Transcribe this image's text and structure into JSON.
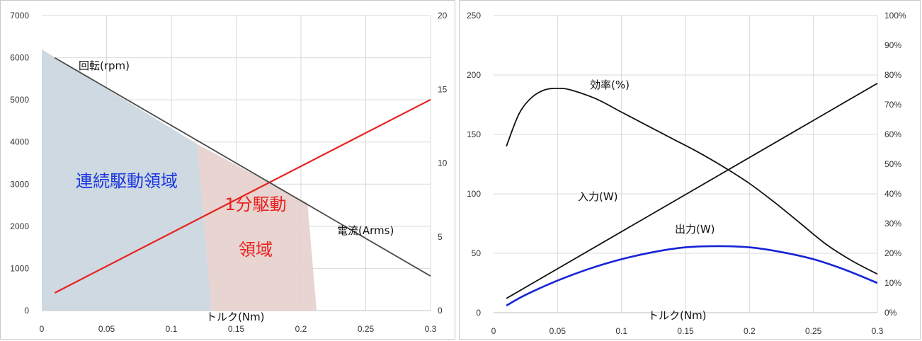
{
  "colors": {
    "rpm_line": "#4a4a4a",
    "current_line": "#e8231f",
    "continuous_region": "#c9d5de",
    "continuous_label": "#1a36e0",
    "peak_region": "#e6cfcc",
    "peak_label": "#e8231f",
    "efficiency_line": "#111111",
    "input_line": "#111111",
    "output_line": "#1624d6",
    "grid": "#d9d9d9"
  },
  "chart_data": [
    {
      "type": "line",
      "x_ticks": [
        0,
        0.05,
        0.1,
        0.15,
        0.2,
        0.25,
        0.3
      ],
      "x_tick_labels": [
        "0",
        "0.05",
        "0.1",
        "0.15",
        "0.2",
        "0.25",
        "0.3"
      ],
      "xlim": [
        0,
        0.3
      ],
      "ylim": [
        0,
        7000
      ],
      "y_ticks": [
        0,
        1000,
        2000,
        3000,
        4000,
        5000,
        6000,
        7000
      ],
      "y_tick_labels": [
        "0",
        "1000",
        "2000",
        "3000",
        "4000",
        "5000",
        "6000",
        "7000"
      ],
      "y2lim": [
        0,
        20
      ],
      "y2_ticks": [
        0,
        5,
        10,
        15,
        20
      ],
      "y2_tick_labels": [
        "0",
        "5",
        "10",
        "15",
        "20"
      ],
      "xlabel": "トルク(Nm)",
      "grid": true,
      "series": [
        {
          "name": "回転(rpm)",
          "axis": "left",
          "x": [
            0.01,
            0.3
          ],
          "y": [
            6000,
            820
          ]
        },
        {
          "name": "電流(Arms)",
          "axis": "right",
          "x": [
            0.01,
            0.3
          ],
          "y": [
            1.2,
            14.3
          ]
        }
      ],
      "regions": [
        {
          "name": "連続駆動領域",
          "label_lines": [
            "連続駆動領域"
          ],
          "polygon": [
            [
              0,
              6200
            ],
            [
              0.12,
              3950
            ],
            [
              0.131,
              0
            ],
            [
              0,
              0
            ]
          ]
        },
        {
          "name": "1分駆動領域",
          "label_lines": [
            "1分駆動",
            "領域"
          ],
          "polygon": [
            [
              0.12,
              3950
            ],
            [
              0.205,
              2550
            ],
            [
              0.212,
              0
            ],
            [
              0.131,
              0
            ]
          ]
        }
      ]
    },
    {
      "type": "line",
      "x_ticks": [
        0,
        0.05,
        0.1,
        0.15,
        0.2,
        0.25,
        0.3
      ],
      "x_tick_labels": [
        "0",
        "0.05",
        "0.1",
        "0.15",
        "0.2",
        "0.25",
        "0.3"
      ],
      "xlim": [
        0,
        0.3
      ],
      "ylim": [
        0,
        250
      ],
      "y_ticks": [
        0,
        50,
        100,
        150,
        200,
        250
      ],
      "y_tick_labels": [
        "0",
        "50",
        "100",
        "150",
        "200",
        "250"
      ],
      "y2lim": [
        0,
        100
      ],
      "y2_ticks": [
        0,
        10,
        20,
        30,
        40,
        50,
        60,
        70,
        80,
        90,
        100
      ],
      "y2_tick_labels": [
        "0%",
        "10%",
        "20%",
        "30%",
        "40%",
        "50%",
        "60%",
        "70%",
        "80%",
        "90%",
        "100%"
      ],
      "xlabel": "トルク(Nm)",
      "grid": true,
      "series": [
        {
          "name": "効率(%)",
          "axis": "right",
          "x": [
            0.01,
            0.02,
            0.03,
            0.04,
            0.05,
            0.06,
            0.08,
            0.1,
            0.12,
            0.14,
            0.16,
            0.18,
            0.2,
            0.22,
            0.24,
            0.26,
            0.28,
            0.3
          ],
          "y": [
            56,
            67,
            72.5,
            75,
            75.5,
            75,
            72,
            67.5,
            63,
            58.5,
            54,
            49,
            43.5,
            37,
            30,
            23,
            17.5,
            13
          ]
        },
        {
          "name": "入力(W)",
          "axis": "left",
          "x": [
            0.01,
            0.3
          ],
          "y": [
            12,
            193
          ]
        },
        {
          "name": "出力(W)",
          "axis": "left",
          "x": [
            0.01,
            0.025,
            0.05,
            0.075,
            0.1,
            0.125,
            0.15,
            0.175,
            0.2,
            0.225,
            0.25,
            0.275,
            0.3
          ],
          "y": [
            6,
            15,
            27,
            37,
            45,
            51,
            55,
            56,
            55,
            51,
            45,
            36,
            25
          ]
        }
      ]
    }
  ]
}
